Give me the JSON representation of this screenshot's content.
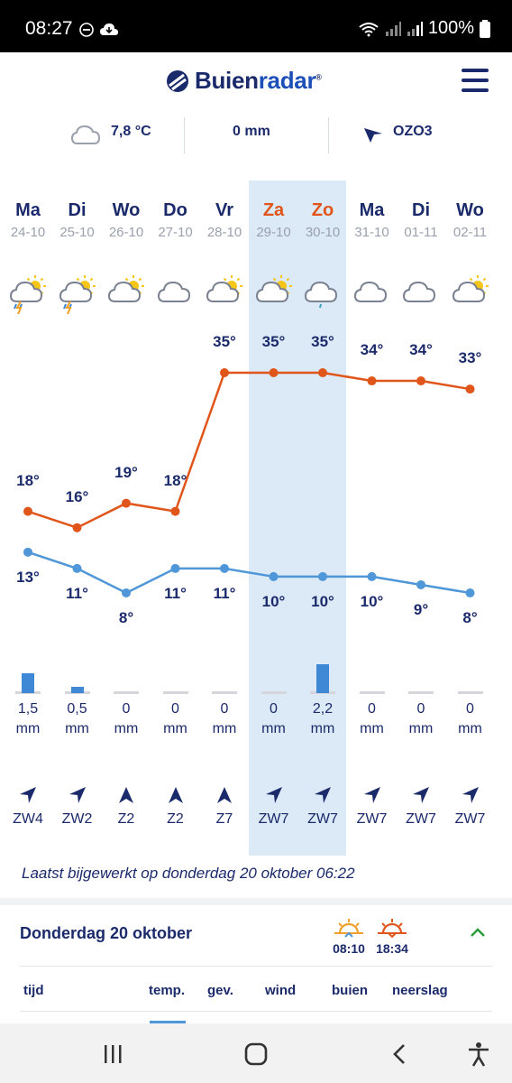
{
  "status_bar": {
    "time": "08:27",
    "battery": "100%"
  },
  "brand": {
    "name_part1": "Buien",
    "name_part2": "radar",
    "registered": "®"
  },
  "current": {
    "temperature": "7,8 °C",
    "rain": "0 mm",
    "wind": "OZO3"
  },
  "days": [
    {
      "name": "Ma",
      "date": "24-10",
      "weekend": false,
      "icon": "partly-cloudy-thunder-icon",
      "high": "18°",
      "low": "13°",
      "rain": "1,5",
      "rain_unit": "mm",
      "rain_mm": 1.5,
      "wind": "ZW4",
      "wind_dir": "ZW"
    },
    {
      "name": "Di",
      "date": "25-10",
      "weekend": false,
      "icon": "thunder-rain-icon",
      "high": "16°",
      "low": "11°",
      "rain": "0,5",
      "rain_unit": "mm",
      "rain_mm": 0.5,
      "wind": "ZW2",
      "wind_dir": "ZW"
    },
    {
      "name": "Wo",
      "date": "26-10",
      "weekend": false,
      "icon": "partly-cloudy-icon",
      "high": "19°",
      "low": "8°",
      "rain": "0",
      "rain_unit": "mm",
      "rain_mm": 0,
      "wind": "Z2",
      "wind_dir": "Z"
    },
    {
      "name": "Do",
      "date": "27-10",
      "weekend": false,
      "icon": "cloud-icon",
      "high": "18°",
      "low": "11°",
      "rain": "0",
      "rain_unit": "mm",
      "rain_mm": 0,
      "wind": "Z2",
      "wind_dir": "Z"
    },
    {
      "name": "Vr",
      "date": "28-10",
      "weekend": false,
      "icon": "partly-cloudy-icon",
      "high": "35°",
      "low": "11°",
      "rain": "0",
      "rain_unit": "mm",
      "rain_mm": 0,
      "wind": "Z7",
      "wind_dir": "Z"
    },
    {
      "name": "Za",
      "date": "29-10",
      "weekend": true,
      "icon": "partly-cloudy-icon",
      "high": "35°",
      "low": "10°",
      "rain": "0",
      "rain_unit": "mm",
      "rain_mm": 0,
      "wind": "ZW7",
      "wind_dir": "ZW"
    },
    {
      "name": "Zo",
      "date": "30-10",
      "weekend": true,
      "icon": "cloud-drizzle-icon",
      "high": "35°",
      "low": "10°",
      "rain": "2,2",
      "rain_unit": "mm",
      "rain_mm": 2.2,
      "wind": "ZW7",
      "wind_dir": "ZW"
    },
    {
      "name": "Ma",
      "date": "31-10",
      "weekend": false,
      "icon": "cloud-icon",
      "high": "34°",
      "low": "10°",
      "rain": "0",
      "rain_unit": "mm",
      "rain_mm": 0,
      "wind": "ZW7",
      "wind_dir": "ZW"
    },
    {
      "name": "Di",
      "date": "01-11",
      "weekend": false,
      "icon": "cloud-icon",
      "high": "34°",
      "low": "9°",
      "rain": "0",
      "rain_unit": "mm",
      "rain_mm": 0,
      "wind": "ZW7",
      "wind_dir": "ZW"
    },
    {
      "name": "Wo",
      "date": "02-11",
      "weekend": false,
      "icon": "partly-cloudy-icon",
      "high": "33°",
      "low": "8°",
      "rain": "0",
      "rain_unit": "mm",
      "rain_mm": 0,
      "wind": "ZW7",
      "wind_dir": "ZW"
    }
  ],
  "chart_data": {
    "type": "line",
    "categories": [
      "24-10",
      "25-10",
      "26-10",
      "27-10",
      "28-10",
      "29-10",
      "30-10",
      "31-10",
      "01-11",
      "02-11"
    ],
    "series": [
      {
        "values": [
          18,
          16,
          19,
          18,
          35,
          35,
          35,
          34,
          34,
          33
        ],
        "color": "#e0561a"
      },
      {
        "values": [
          13,
          11,
          8,
          11,
          11,
          10,
          10,
          10,
          9,
          8
        ],
        "color": "#4f97d8"
      }
    ],
    "ylim": [
      6,
      37
    ],
    "grid": false
  },
  "updated_text": "Laatst bijgewerkt op donderdag 20 oktober 06:22",
  "day_detail": {
    "title": "Donderdag 20 oktober",
    "sunrise": "08:10",
    "sunset": "18:34"
  },
  "table_headers": [
    "tijd",
    "temp.",
    "gev.",
    "wind",
    "buien",
    "neerslag"
  ],
  "colors": {
    "navy": "#1b2a6b",
    "orange": "#e0561a",
    "blue": "#4f97d8",
    "highlight": "#dce9f6",
    "rain": "#3f88d6"
  }
}
